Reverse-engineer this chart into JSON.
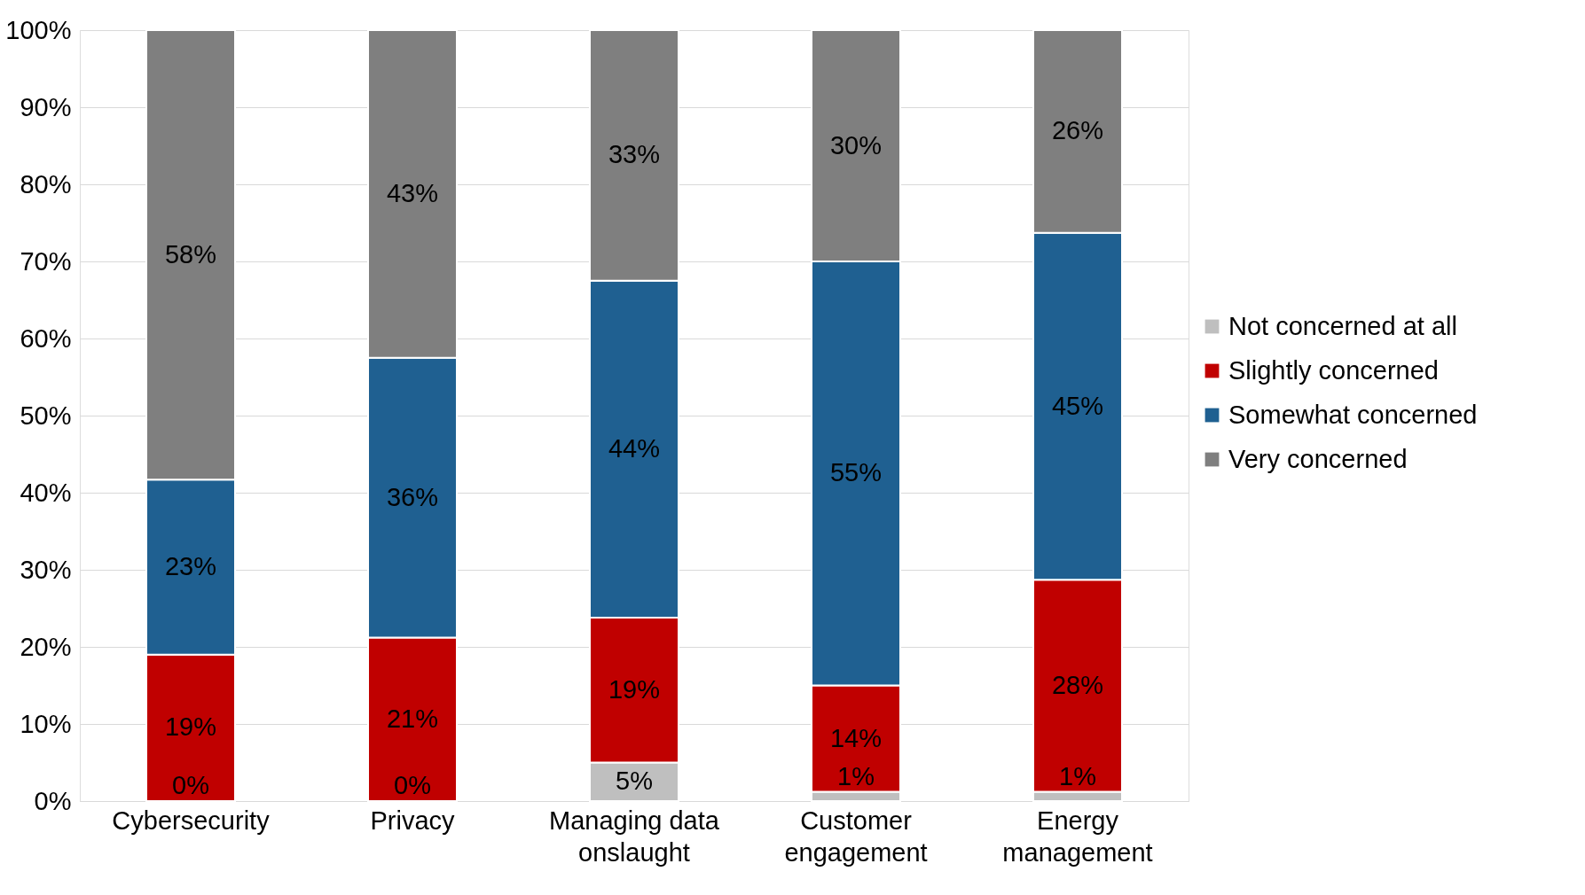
{
  "chart_data": {
    "type": "bar",
    "stacked": true,
    "categories": [
      "Cybersecurity",
      "Privacy",
      "Managing data onslaught",
      "Customer engagement",
      "Energy management"
    ],
    "series": [
      {
        "name": "Not concerned at all",
        "color": "#bfbfbf",
        "values": [
          0,
          0,
          5,
          1.2,
          1.2
        ],
        "value_labels": [
          "0%",
          "0%",
          "5%",
          "1%",
          "1%"
        ]
      },
      {
        "name": "Slightly concerned",
        "color": "#c00000",
        "values": [
          19,
          21.2,
          18.8,
          13.8,
          27.5
        ],
        "value_labels": [
          "19%",
          "21%",
          "19%",
          "14%",
          "28%"
        ]
      },
      {
        "name": "Somewhat concerned",
        "color": "#1f6091",
        "values": [
          22.7,
          36.3,
          43.7,
          55,
          45
        ],
        "value_labels": [
          "23%",
          "36%",
          "44%",
          "55%",
          "45%"
        ]
      },
      {
        "name": "Very concerned",
        "color": "#7f7f7f",
        "values": [
          58.3,
          42.5,
          32.5,
          30,
          26.3
        ],
        "value_labels": [
          "58%",
          "43%",
          "33%",
          "30%",
          "26%"
        ]
      }
    ],
    "ylim": [
      0,
      100
    ],
    "yticks": [
      {
        "value": 0,
        "label": "0%"
      },
      {
        "value": 10,
        "label": "10%"
      },
      {
        "value": 20,
        "label": "20%"
      },
      {
        "value": 30,
        "label": "30%"
      },
      {
        "value": 40,
        "label": "40%"
      },
      {
        "value": 50,
        "label": "50%"
      },
      {
        "value": 60,
        "label": "60%"
      },
      {
        "value": 70,
        "label": "70%"
      },
      {
        "value": 80,
        "label": "80%"
      },
      {
        "value": 90,
        "label": "90%"
      },
      {
        "value": 100,
        "label": "100%"
      }
    ],
    "grid": "y",
    "legend": "right"
  }
}
